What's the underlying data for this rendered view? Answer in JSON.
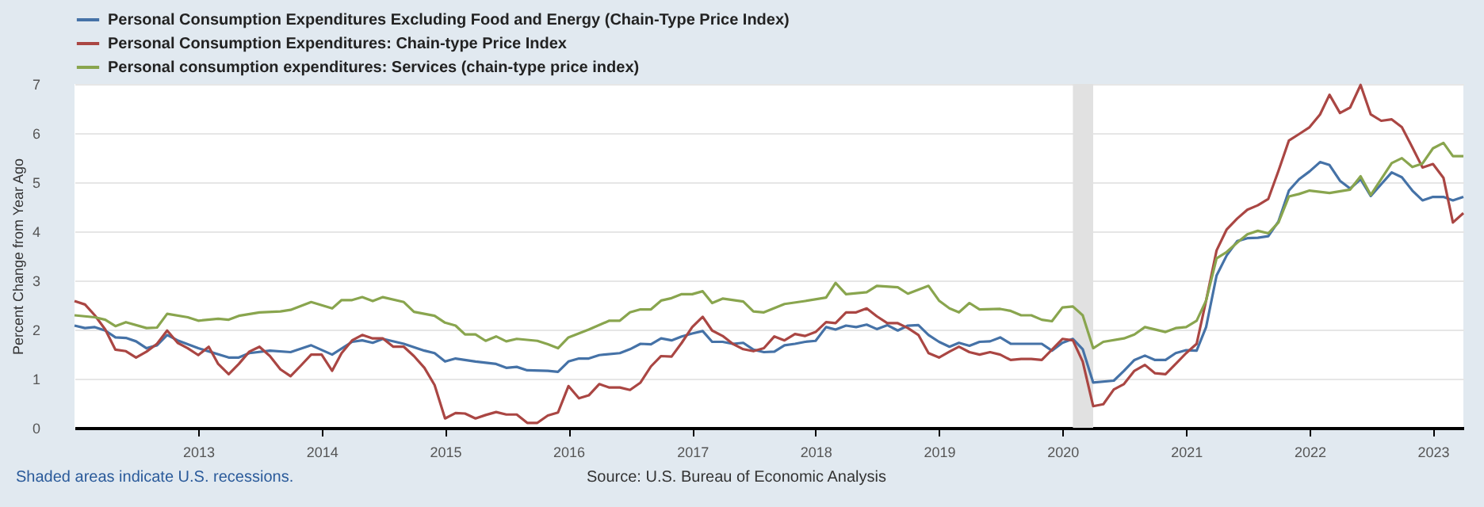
{
  "chart_data": {
    "type": "line",
    "ylabel": "Percent Change from Year Ago",
    "xlim": [
      "2012-01",
      "2023-04"
    ],
    "xticks": [
      "2013",
      "2014",
      "2015",
      "2016",
      "2017",
      "2018",
      "2019",
      "2020",
      "2021",
      "2022",
      "2023"
    ],
    "ylim": [
      0,
      7
    ],
    "yticks": [
      0,
      1,
      2,
      3,
      4,
      5,
      6,
      7
    ],
    "grid": "y",
    "legend": "top left",
    "bands": [
      {
        "axis": "x",
        "from": "2020-02",
        "to": "2020-04",
        "color": "#e1e1e1"
      }
    ],
    "annotations": [
      "Shaded areas indicate U.S. recessions.",
      "Source: U.S. Bureau of Economic Analysis"
    ],
    "series": [
      {
        "name": "Personal Consumption Expenditures Excluding Food and Energy (Chain-Type Price Index)",
        "color": "#4572a7",
        "x": [
          "2012-01",
          "2012-02",
          "2012-03",
          "2012-04",
          "2012-05",
          "2012-06",
          "2012-07",
          "2012-08",
          "2012-09",
          "2012-10",
          "2012-11",
          "2013-01",
          "2013-04",
          "2013-05",
          "2013-06",
          "2013-08",
          "2013-10",
          "2013-12",
          "2014-02",
          "2014-04",
          "2014-05",
          "2014-06",
          "2014-07",
          "2014-09",
          "2014-11",
          "2014-12",
          "2015-01",
          "2015-02",
          "2015-04",
          "2015-06",
          "2015-07",
          "2015-08",
          "2015-09",
          "2015-11",
          "2015-12",
          "2016-01",
          "2016-02",
          "2016-03",
          "2016-04",
          "2016-06",
          "2016-07",
          "2016-08",
          "2016-09",
          "2016-10",
          "2016-11",
          "2016-12",
          "2017-01",
          "2017-02",
          "2017-03",
          "2017-04",
          "2017-05",
          "2017-06",
          "2017-07",
          "2017-08",
          "2017-09",
          "2017-10",
          "2017-11",
          "2017-12",
          "2018-01",
          "2018-02",
          "2018-03",
          "2018-04",
          "2018-05",
          "2018-06",
          "2018-07",
          "2018-08",
          "2018-09",
          "2018-10",
          "2018-11",
          "2018-12",
          "2019-01",
          "2019-02",
          "2019-03",
          "2019-04",
          "2019-05",
          "2019-06",
          "2019-07",
          "2019-08",
          "2019-09",
          "2019-11",
          "2019-12",
          "2020-01",
          "2020-02",
          "2020-03",
          "2020-04",
          "2020-06",
          "2020-07",
          "2020-08",
          "2020-09",
          "2020-10",
          "2020-11",
          "2020-12",
          "2021-01",
          "2021-02",
          "2021-03",
          "2021-04",
          "2021-05",
          "2021-06",
          "2021-07",
          "2021-08",
          "2021-09",
          "2021-10",
          "2021-11",
          "2021-12",
          "2022-01",
          "2022-02",
          "2022-03",
          "2022-04",
          "2022-05",
          "2022-06",
          "2022-07",
          "2022-08",
          "2022-09",
          "2022-10",
          "2022-11",
          "2022-12",
          "2023-01",
          "2023-02",
          "2023-03",
          "2023-04"
        ],
        "values": [
          2.08,
          2.03,
          2.05,
          1.98,
          1.84,
          1.83,
          1.76,
          1.62,
          1.68,
          1.89,
          1.78,
          1.62,
          1.43,
          1.43,
          1.52,
          1.57,
          1.54,
          1.68,
          1.49,
          1.75,
          1.78,
          1.73,
          1.81,
          1.71,
          1.57,
          1.52,
          1.35,
          1.41,
          1.35,
          1.3,
          1.22,
          1.24,
          1.17,
          1.16,
          1.14,
          1.35,
          1.41,
          1.41,
          1.48,
          1.52,
          1.6,
          1.71,
          1.7,
          1.82,
          1.78,
          1.86,
          1.92,
          1.97,
          1.75,
          1.75,
          1.71,
          1.73,
          1.59,
          1.54,
          1.55,
          1.68,
          1.71,
          1.75,
          1.77,
          2.05,
          2.0,
          2.08,
          2.05,
          2.1,
          2.01,
          2.09,
          1.98,
          2.08,
          2.09,
          1.89,
          1.75,
          1.65,
          1.73,
          1.67,
          1.75,
          1.76,
          1.84,
          1.71,
          1.71,
          1.71,
          1.57,
          1.73,
          1.81,
          1.6,
          0.92,
          0.96,
          1.16,
          1.38,
          1.47,
          1.38,
          1.38,
          1.52,
          1.58,
          1.57,
          2.05,
          3.1,
          3.51,
          3.8,
          3.86,
          3.87,
          3.9,
          4.2,
          4.83,
          5.06,
          5.22,
          5.41,
          5.35,
          5.03,
          4.87,
          5.06,
          4.72,
          4.96,
          5.2,
          5.1,
          4.83,
          4.63,
          4.7,
          4.7,
          4.63,
          4.7
        ]
      },
      {
        "name": "Personal Consumption Expenditures: Chain-type Price Index",
        "color": "#aa4643",
        "x": [
          "2012-01",
          "2012-02",
          "2012-03",
          "2012-04",
          "2012-05",
          "2012-06",
          "2012-07",
          "2012-08",
          "2012-09",
          "2012-10",
          "2012-11",
          "2012-12",
          "2013-01",
          "2013-02",
          "2013-03",
          "2013-04",
          "2013-05",
          "2013-06",
          "2013-07",
          "2013-08",
          "2013-09",
          "2013-10",
          "2013-11",
          "2013-12",
          "2014-01",
          "2014-02",
          "2014-03",
          "2014-04",
          "2014-05",
          "2014-06",
          "2014-07",
          "2014-08",
          "2014-09",
          "2014-10",
          "2014-11",
          "2014-12",
          "2015-01",
          "2015-02",
          "2015-03",
          "2015-04",
          "2015-05",
          "2015-06",
          "2015-07",
          "2015-08",
          "2015-09",
          "2015-10",
          "2015-11",
          "2015-12",
          "2016-01",
          "2016-02",
          "2016-03",
          "2016-04",
          "2016-05",
          "2016-06",
          "2016-07",
          "2016-08",
          "2016-09",
          "2016-10",
          "2016-11",
          "2016-12",
          "2017-01",
          "2017-02",
          "2017-03",
          "2017-04",
          "2017-05",
          "2017-06",
          "2017-07",
          "2017-08",
          "2017-09",
          "2017-10",
          "2017-11",
          "2017-12",
          "2018-01",
          "2018-02",
          "2018-03",
          "2018-04",
          "2018-05",
          "2018-06",
          "2018-07",
          "2018-08",
          "2018-09",
          "2018-10",
          "2018-11",
          "2018-12",
          "2019-01",
          "2019-02",
          "2019-03",
          "2019-04",
          "2019-05",
          "2019-06",
          "2019-07",
          "2019-08",
          "2019-09",
          "2019-10",
          "2019-11",
          "2019-12",
          "2020-01",
          "2020-02",
          "2020-03",
          "2020-04",
          "2020-05",
          "2020-06",
          "2020-07",
          "2020-08",
          "2020-09",
          "2020-10",
          "2020-11",
          "2020-12",
          "2021-01",
          "2021-02",
          "2021-03",
          "2021-04",
          "2021-05",
          "2021-06",
          "2021-07",
          "2021-08",
          "2021-09",
          "2021-10",
          "2021-11",
          "2021-12",
          "2022-01",
          "2022-02",
          "2022-03",
          "2022-04",
          "2022-05",
          "2022-06",
          "2022-07",
          "2022-08",
          "2022-09",
          "2022-10",
          "2022-11",
          "2022-12",
          "2023-01",
          "2023-02",
          "2023-03",
          "2023-04"
        ],
        "values": [
          2.58,
          2.51,
          2.29,
          2.0,
          1.59,
          1.56,
          1.43,
          1.55,
          1.71,
          1.98,
          1.73,
          1.62,
          1.48,
          1.65,
          1.3,
          1.09,
          1.3,
          1.55,
          1.65,
          1.46,
          1.19,
          1.05,
          1.27,
          1.49,
          1.49,
          1.16,
          1.52,
          1.78,
          1.89,
          1.82,
          1.82,
          1.65,
          1.65,
          1.46,
          1.22,
          0.87,
          0.19,
          0.3,
          0.29,
          0.19,
          0.26,
          0.32,
          0.27,
          0.27,
          0.1,
          0.1,
          0.25,
          0.31,
          0.85,
          0.6,
          0.66,
          0.89,
          0.82,
          0.82,
          0.77,
          0.92,
          1.25,
          1.46,
          1.45,
          1.73,
          2.05,
          2.26,
          1.98,
          1.87,
          1.71,
          1.6,
          1.56,
          1.62,
          1.86,
          1.78,
          1.91,
          1.87,
          1.95,
          2.15,
          2.13,
          2.35,
          2.35,
          2.43,
          2.27,
          2.13,
          2.13,
          2.03,
          1.89,
          1.52,
          1.43,
          1.55,
          1.65,
          1.54,
          1.49,
          1.54,
          1.49,
          1.38,
          1.4,
          1.4,
          1.38,
          1.59,
          1.81,
          1.78,
          1.35,
          0.44,
          0.48,
          0.78,
          0.89,
          1.16,
          1.28,
          1.11,
          1.09,
          1.3,
          1.52,
          1.71,
          2.59,
          3.61,
          4.04,
          4.26,
          4.44,
          4.53,
          4.66,
          5.23,
          5.85,
          5.98,
          6.12,
          6.38,
          6.78,
          6.41,
          6.52,
          6.98,
          6.38,
          6.25,
          6.28,
          6.12,
          5.71,
          5.3,
          5.37,
          5.09,
          4.18,
          4.37
        ]
      },
      {
        "name": "Personal consumption expenditures: Services (chain-type price index)",
        "color": "#89a54e",
        "x": [
          "2012-01",
          "2012-03",
          "2012-04",
          "2012-05",
          "2012-06",
          "2012-08",
          "2012-09",
          "2012-10",
          "2012-12",
          "2013-01",
          "2013-03",
          "2013-04",
          "2013-05",
          "2013-07",
          "2013-09",
          "2013-10",
          "2013-12",
          "2014-02",
          "2014-03",
          "2014-04",
          "2014-05",
          "2014-06",
          "2014-07",
          "2014-09",
          "2014-10",
          "2014-12",
          "2015-01",
          "2015-02",
          "2015-03",
          "2015-04",
          "2015-05",
          "2015-06",
          "2015-07",
          "2015-08",
          "2015-10",
          "2015-11",
          "2015-12",
          "2016-01",
          "2016-03",
          "2016-05",
          "2016-06",
          "2016-07",
          "2016-08",
          "2016-09",
          "2016-10",
          "2016-11",
          "2016-12",
          "2017-01",
          "2017-02",
          "2017-03",
          "2017-04",
          "2017-06",
          "2017-07",
          "2017-08",
          "2017-10",
          "2017-12",
          "2018-02",
          "2018-03",
          "2018-04",
          "2018-06",
          "2018-07",
          "2018-09",
          "2018-10",
          "2018-12",
          "2019-01",
          "2019-02",
          "2019-03",
          "2019-04",
          "2019-05",
          "2019-07",
          "2019-08",
          "2019-09",
          "2019-10",
          "2019-11",
          "2019-12",
          "2020-01",
          "2020-02",
          "2020-03",
          "2020-04",
          "2020-05",
          "2020-07",
          "2020-08",
          "2020-09",
          "2020-11",
          "2020-12",
          "2021-01",
          "2021-02",
          "2021-03",
          "2021-04",
          "2021-05",
          "2021-06",
          "2021-07",
          "2021-08",
          "2021-09",
          "2021-10",
          "2021-11",
          "2021-12",
          "2022-01",
          "2022-03",
          "2022-05",
          "2022-06",
          "2022-07",
          "2022-09",
          "2022-10",
          "2022-11",
          "2022-12",
          "2023-01",
          "2023-02",
          "2023-03",
          "2023-04"
        ],
        "values": [
          2.29,
          2.25,
          2.2,
          2.07,
          2.15,
          2.03,
          2.04,
          2.32,
          2.25,
          2.18,
          2.22,
          2.2,
          2.28,
          2.35,
          2.37,
          2.4,
          2.56,
          2.43,
          2.6,
          2.6,
          2.66,
          2.58,
          2.66,
          2.56,
          2.36,
          2.28,
          2.14,
          2.08,
          1.9,
          1.9,
          1.77,
          1.86,
          1.76,
          1.81,
          1.77,
          1.7,
          1.62,
          1.84,
          2.0,
          2.18,
          2.18,
          2.35,
          2.41,
          2.41,
          2.59,
          2.64,
          2.72,
          2.72,
          2.78,
          2.54,
          2.63,
          2.57,
          2.37,
          2.35,
          2.52,
          2.58,
          2.65,
          2.95,
          2.72,
          2.76,
          2.89,
          2.86,
          2.73,
          2.89,
          2.59,
          2.43,
          2.35,
          2.54,
          2.41,
          2.42,
          2.38,
          2.29,
          2.29,
          2.2,
          2.17,
          2.45,
          2.47,
          2.29,
          1.62,
          1.75,
          1.82,
          1.9,
          2.05,
          1.95,
          2.03,
          2.05,
          2.18,
          2.59,
          3.45,
          3.58,
          3.77,
          3.94,
          4.01,
          3.96,
          4.18,
          4.71,
          4.76,
          4.83,
          4.78,
          4.85,
          5.12,
          4.74,
          5.39,
          5.49,
          5.31,
          5.38,
          5.69,
          5.8,
          5.53,
          5.53
        ]
      }
    ]
  }
}
